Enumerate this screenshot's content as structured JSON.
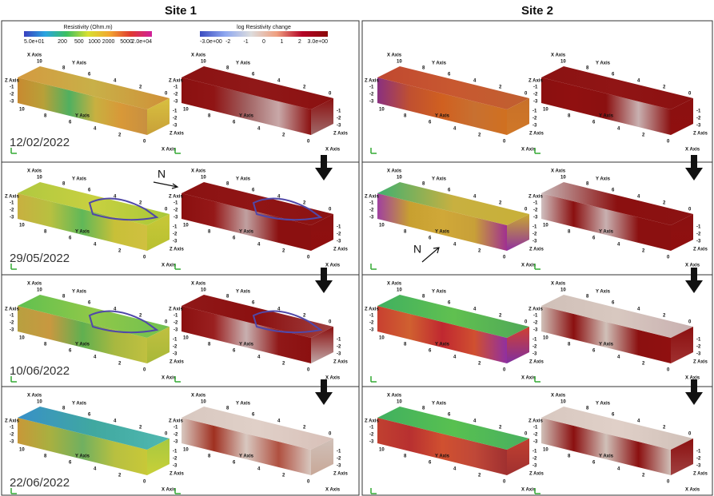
{
  "figure": {
    "sites": [
      "Site 1",
      "Site 2"
    ],
    "colorbars": [
      {
        "title": "Resistivity (Ohm.m)",
        "labels": [
          "5.0e+01",
          "200",
          "500",
          "1000",
          "2000",
          "5000",
          "2.0e+04"
        ]
      },
      {
        "title": "log Resistivity change",
        "labels": [
          "-3.0e+00",
          "-2",
          "-1",
          "0",
          "1",
          "2",
          "3.0e+00"
        ]
      }
    ],
    "dates": [
      "12/02/2022",
      "29/05/2022",
      "10/06/2022",
      "22/06/2022"
    ],
    "north": "N",
    "axes": {
      "x": "X Axis",
      "y": "Y Axis",
      "z": "Z Axis",
      "horizontal_ticks": [
        "10",
        "8",
        "6",
        "4",
        "2",
        "0"
      ],
      "z_ticks": [
        "-1",
        "-2",
        "-3"
      ]
    }
  }
}
